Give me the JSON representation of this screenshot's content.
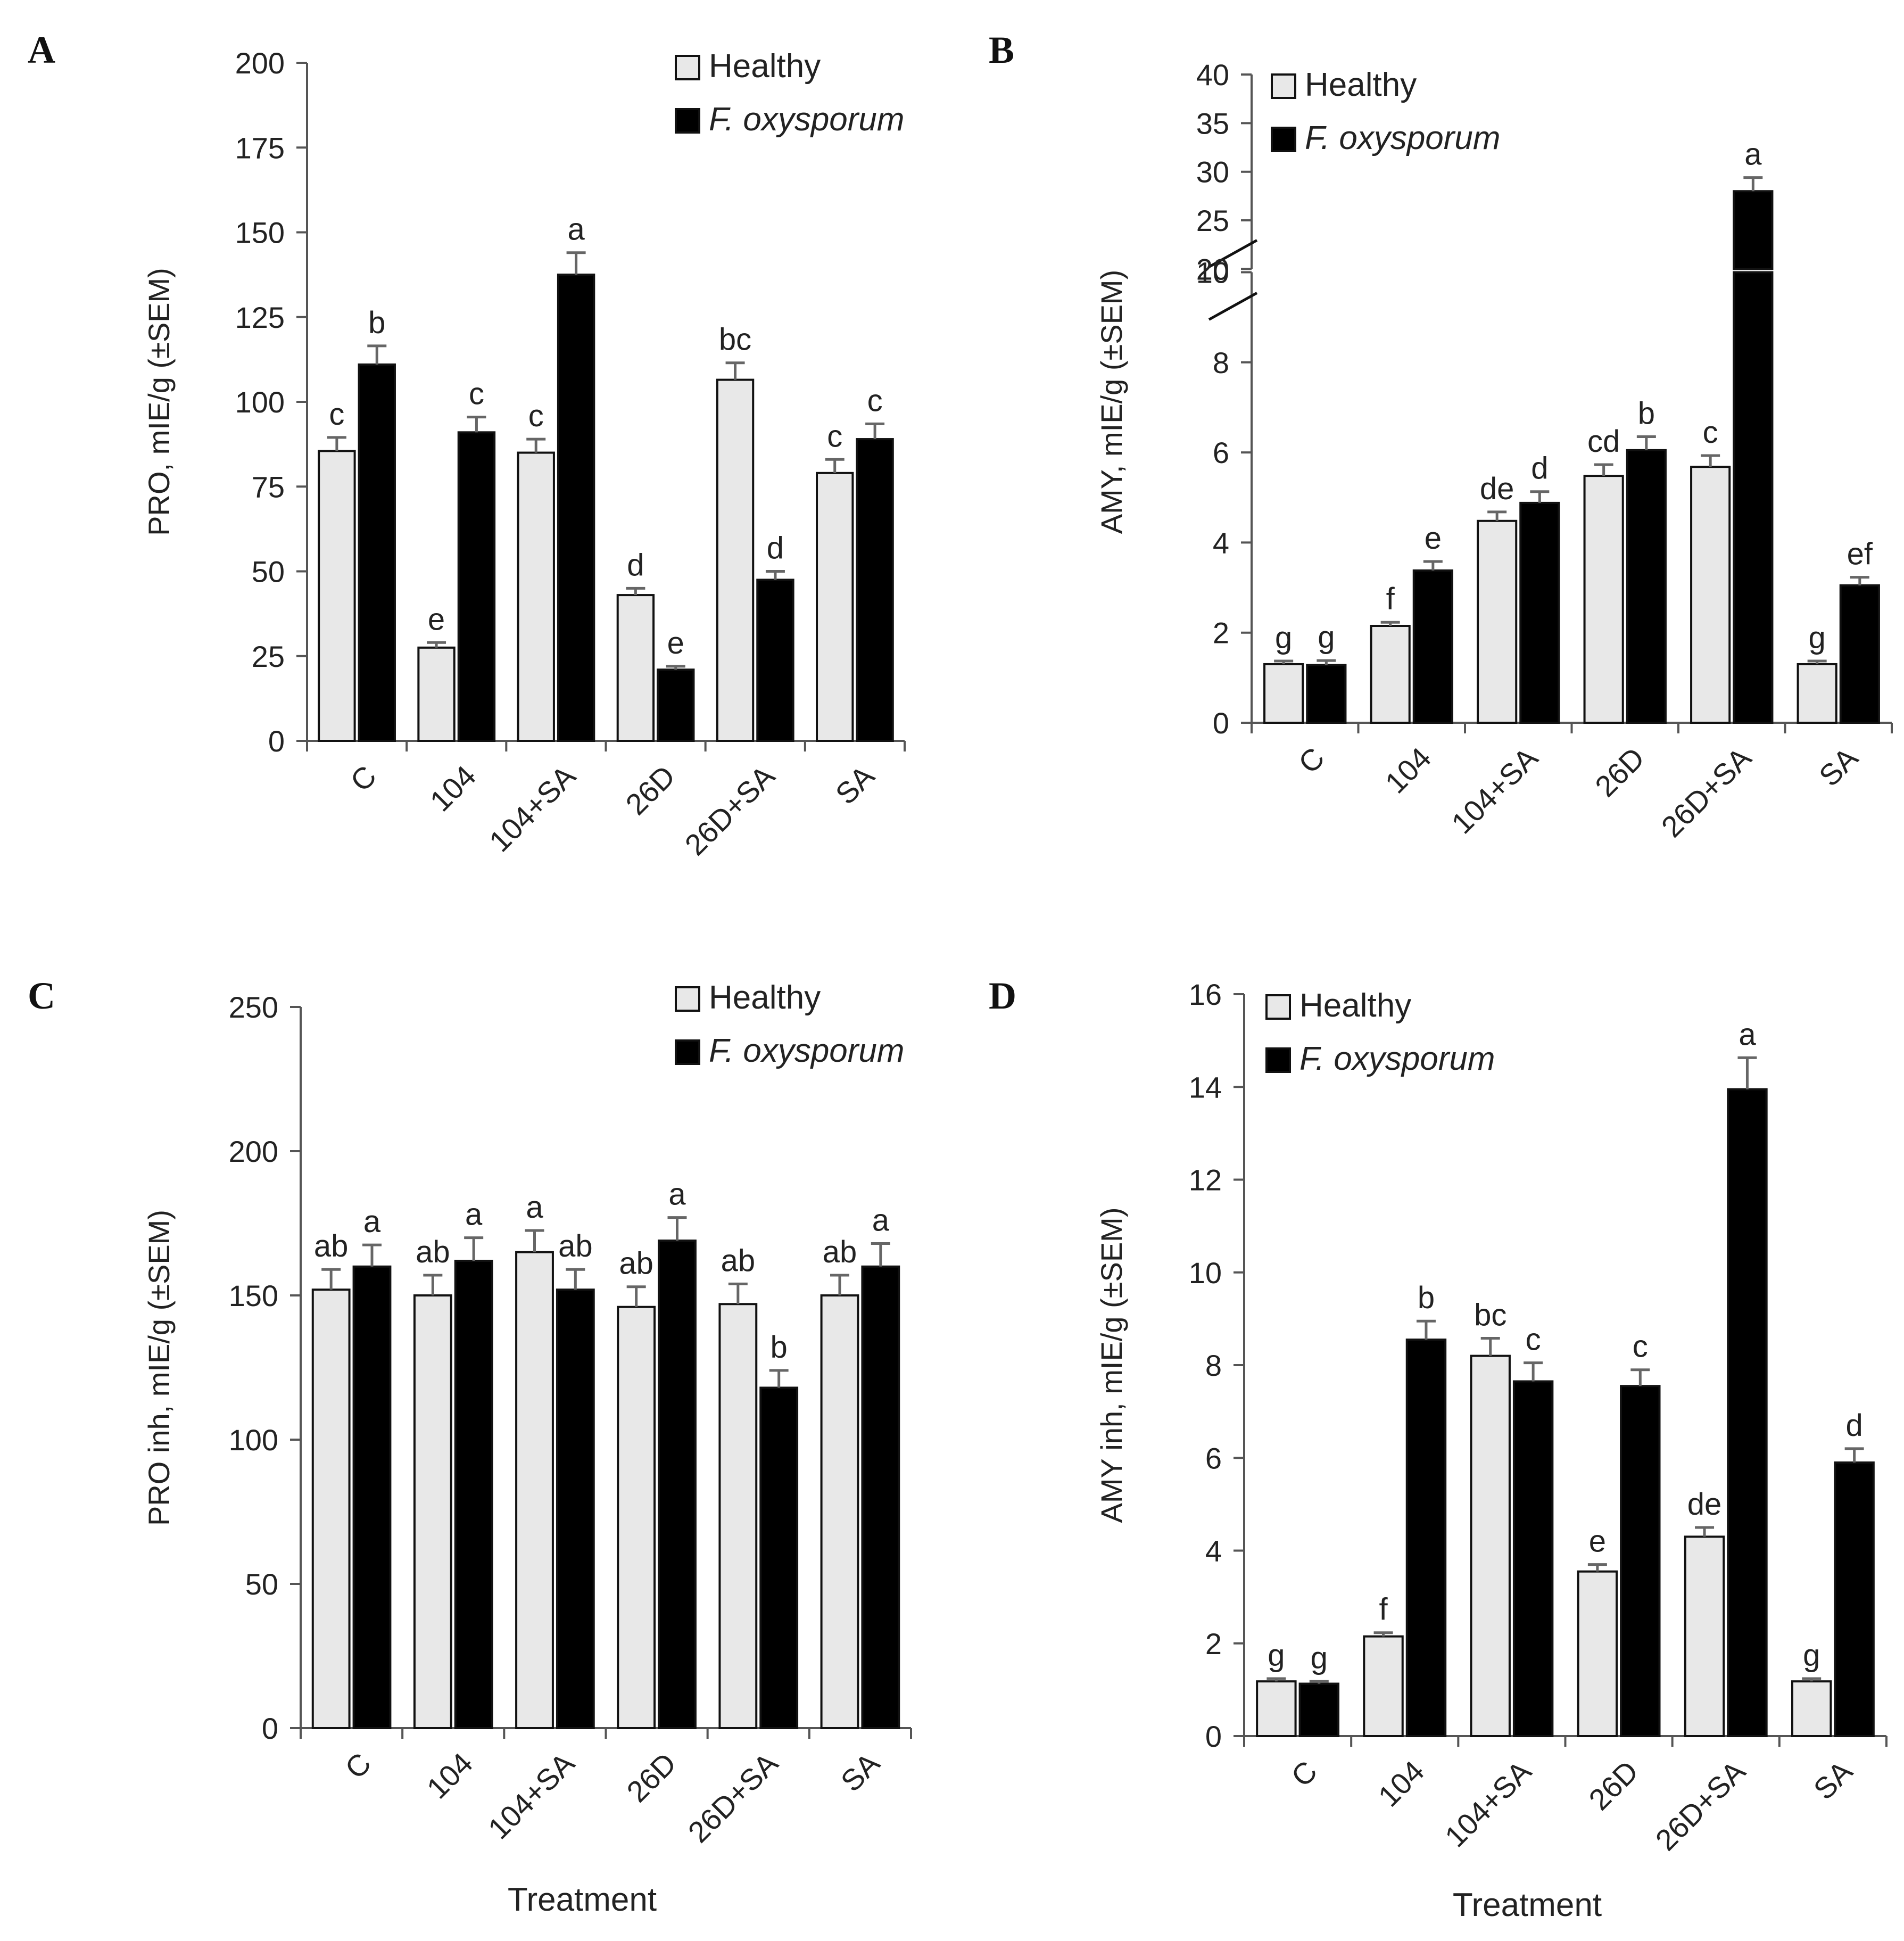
{
  "figure": {
    "legend_healthy": "Healthy",
    "legend_fox": "F. oxysporum",
    "colors": {
      "healthy": "#e8e8e8",
      "fox": "#000000",
      "edge": "#111111"
    }
  },
  "chart_data": [
    {
      "panel": "A",
      "type": "bar",
      "ylabel": "PRO, mIE/g (±SEM)",
      "xlabel": "",
      "ylim": [
        0,
        200
      ],
      "yticks": [
        0,
        25,
        50,
        75,
        100,
        125,
        150,
        175,
        200
      ],
      "categories": [
        "C",
        "104",
        "104+SA",
        "26D",
        "26D+SA",
        "SA"
      ],
      "series": [
        {
          "name": "Healthy",
          "values": [
            85.5,
            27.5,
            85,
            43,
            106.5,
            79
          ],
          "errors": [
            4,
            1.5,
            4,
            2,
            5,
            4
          ],
          "letters": [
            "c",
            "e",
            "c",
            "d",
            "bc",
            "c"
          ]
        },
        {
          "name": "F. oxysporum",
          "values": [
            111,
            91,
            137.5,
            21,
            47.5,
            89
          ],
          "errors": [
            5.5,
            4.5,
            6.5,
            1,
            2.5,
            4.5
          ],
          "letters": [
            "b",
            "c",
            "a",
            "e",
            "d",
            "c"
          ]
        }
      ]
    },
    {
      "panel": "B",
      "type": "bar",
      "ylabel": "AMY, mIE/g (±SEM)",
      "xlabel": "",
      "ylim": [
        0,
        40
      ],
      "axis_break": [
        10,
        20
      ],
      "yticks_lower": [
        0,
        2,
        4,
        6,
        8,
        10
      ],
      "yticks_upper": [
        20,
        25,
        30,
        35,
        40
      ],
      "categories": [
        "C",
        "104",
        "104+SA",
        "26D",
        "26D+SA",
        "SA"
      ],
      "series": [
        {
          "name": "Healthy",
          "values": [
            1.3,
            2.15,
            4.48,
            5.48,
            5.68,
            1.3
          ],
          "errors": [
            0.07,
            0.08,
            0.2,
            0.25,
            0.25,
            0.07
          ],
          "letters": [
            "g",
            "f",
            "de",
            "cd",
            "c",
            "g"
          ]
        },
        {
          "name": "F. oxysporum",
          "values": [
            1.28,
            3.38,
            4.88,
            6.05,
            28,
            3.05
          ],
          "errors": [
            0.1,
            0.2,
            0.25,
            0.3,
            1.4,
            0.18
          ],
          "letters": [
            "g",
            "e",
            "d",
            "b",
            "a",
            "ef"
          ]
        }
      ]
    },
    {
      "panel": "C",
      "type": "bar",
      "ylabel": "PRO inh, mIE/g (±SEM)",
      "xlabel": "Treatment",
      "ylim": [
        0,
        250
      ],
      "yticks": [
        0,
        50,
        100,
        150,
        200,
        250
      ],
      "categories": [
        "C",
        "104",
        "104+SA",
        "26D",
        "26D+SA",
        "SA"
      ],
      "series": [
        {
          "name": "Healthy",
          "values": [
            152,
            150,
            165,
            146,
            147,
            150
          ],
          "errors": [
            7,
            7,
            7.5,
            7,
            7,
            7
          ],
          "letters": [
            "ab",
            "ab",
            "a",
            "ab",
            "ab",
            "ab"
          ]
        },
        {
          "name": "F. oxysporum",
          "values": [
            160,
            162,
            152,
            169,
            118,
            160
          ],
          "errors": [
            7.5,
            8,
            7,
            8,
            6,
            8
          ],
          "letters": [
            "a",
            "a",
            "ab",
            "a",
            "b",
            "a"
          ]
        }
      ]
    },
    {
      "panel": "D",
      "type": "bar",
      "ylabel": "AMY inh, mIE/g (±SEM)",
      "xlabel": "Treatment",
      "ylim": [
        0,
        16
      ],
      "yticks": [
        0,
        2,
        4,
        6,
        8,
        10,
        12,
        14,
        16
      ],
      "categories": [
        "C",
        "104",
        "104+SA",
        "26D",
        "26D+SA",
        "SA"
      ],
      "series": [
        {
          "name": "Healthy",
          "values": [
            1.18,
            2.15,
            8.2,
            3.55,
            4.3,
            1.18
          ],
          "errors": [
            0.06,
            0.08,
            0.38,
            0.15,
            0.2,
            0.06
          ],
          "letters": [
            "g",
            "f",
            "bc",
            "e",
            "de",
            "g"
          ]
        },
        {
          "name": "F. oxysporum",
          "values": [
            1.13,
            8.55,
            7.65,
            7.55,
            13.95,
            5.9
          ],
          "errors": [
            0.05,
            0.4,
            0.4,
            0.35,
            0.68,
            0.3
          ],
          "letters": [
            "g",
            "b",
            "c",
            "c",
            "a",
            "d"
          ]
        }
      ]
    }
  ]
}
